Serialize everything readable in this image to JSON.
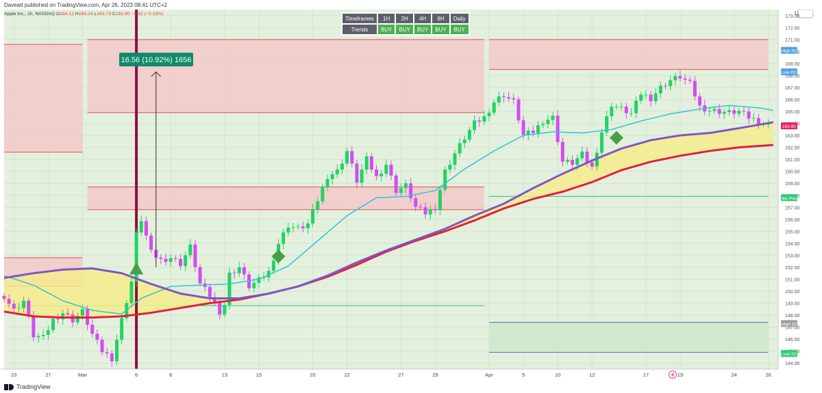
{
  "header": {
    "published": "Daveatt published on TradingView.com, Apr 26, 2023 08:41 UTC+2",
    "symbol": "Apple Inc., 1h, NASDAQ",
    "o_label": "O",
    "o": "164.12",
    "h_label": "H",
    "h": "164.24",
    "l_label": "L",
    "l": "163.73",
    "c_label": "C",
    "c": "163.80",
    "change": "−0.32 (−0.19%)"
  },
  "footer": {
    "brand": "TradingView"
  },
  "trend_table": {
    "row1": [
      "Timeframes",
      "1H",
      "2H",
      "4H",
      "8H",
      "Daily"
    ],
    "row2": [
      "Trends",
      "BUY",
      "BUY",
      "BUY",
      "BUY",
      "BUY"
    ]
  },
  "colors": {
    "background": "#e3f0dd",
    "bull": "#22d266",
    "bear": "#d34cf0",
    "fast_ma": "#2ec4d6",
    "slow_ma_purple": "#7e57c2",
    "slow_ma_red": "#e0203a",
    "cloud": "#f6ec8a",
    "resistance_zone": "#f2c9c9",
    "support_zone": "#cde8cd",
    "entry_line": "#8a0f3d",
    "label_green": "#0f8a6a"
  },
  "chart_data": {
    "type": "candlestick",
    "ticker": "AAPL",
    "timeframe": "1h",
    "currency": "USD",
    "ylim": [
      143.5,
      173.5
    ],
    "yticks": [
      144,
      145,
      146,
      147,
      148,
      149,
      150,
      151,
      152,
      153,
      154,
      155,
      156,
      157,
      158,
      159,
      160,
      161,
      162,
      163,
      164,
      165,
      166,
      167,
      168,
      169,
      170,
      171,
      172,
      173
    ],
    "x_tick_labels": [
      {
        "label": "23",
        "t": 2
      },
      {
        "label": "27",
        "t": 9
      },
      {
        "label": "Mar",
        "t": 16
      },
      {
        "label": "6",
        "t": 27
      },
      {
        "label": "8",
        "t": 34
      },
      {
        "label": "13",
        "t": 45
      },
      {
        "label": "15",
        "t": 52
      },
      {
        "label": "20",
        "t": 63
      },
      {
        "label": "22",
        "t": 70
      },
      {
        "label": "27",
        "t": 81
      },
      {
        "label": "29",
        "t": 88
      },
      {
        "label": "Apr",
        "t": 99
      },
      {
        "label": "5",
        "t": 106
      },
      {
        "label": "10",
        "t": 113
      },
      {
        "label": "12",
        "t": 120
      },
      {
        "label": "17",
        "t": 131
      },
      {
        "label": "19",
        "t": 138
      },
      {
        "label": "24",
        "t": 149
      },
      {
        "label": "26",
        "t": 156
      }
    ],
    "x_range": [
      0,
      158
    ],
    "price_anchors": [
      [
        0,
        149.6
      ],
      [
        2,
        148.4
      ],
      [
        4,
        149.2
      ],
      [
        6,
        146.3
      ],
      [
        8,
        146.1
      ],
      [
        10,
        147.6
      ],
      [
        12,
        148.2
      ],
      [
        14,
        147.6
      ],
      [
        16,
        148.3
      ],
      [
        18,
        146.4
      ],
      [
        20,
        145.0
      ],
      [
        22,
        144.4
      ],
      [
        24,
        147.6
      ],
      [
        26,
        150.8
      ],
      [
        27,
        154.7
      ],
      [
        28,
        156.0
      ],
      [
        30,
        153.2
      ],
      [
        32,
        152.6
      ],
      [
        34,
        152.8
      ],
      [
        36,
        152.3
      ],
      [
        38,
        153.7
      ],
      [
        40,
        150.6
      ],
      [
        42,
        149.6
      ],
      [
        44,
        148.3
      ],
      [
        45,
        148.9
      ],
      [
        46,
        151.4
      ],
      [
        48,
        152.0
      ],
      [
        50,
        150.4
      ],
      [
        52,
        150.9
      ],
      [
        54,
        151.6
      ],
      [
        56,
        154.0
      ],
      [
        58,
        155.5
      ],
      [
        60,
        155.2
      ],
      [
        62,
        155.6
      ],
      [
        64,
        157.6
      ],
      [
        66,
        159.6
      ],
      [
        68,
        160.0
      ],
      [
        70,
        161.7
      ],
      [
        72,
        159.2
      ],
      [
        74,
        161.0
      ],
      [
        76,
        159.5
      ],
      [
        78,
        160.6
      ],
      [
        80,
        158.4
      ],
      [
        82,
        158.8
      ],
      [
        84,
        157.0
      ],
      [
        86,
        156.5
      ],
      [
        88,
        157.0
      ],
      [
        90,
        160.0
      ],
      [
        92,
        161.5
      ],
      [
        94,
        162.8
      ],
      [
        96,
        164.0
      ],
      [
        98,
        164.5
      ],
      [
        100,
        165.8
      ],
      [
        102,
        166.4
      ],
      [
        104,
        165.8
      ],
      [
        106,
        163.0
      ],
      [
        108,
        163.3
      ],
      [
        110,
        164.2
      ],
      [
        112,
        164.5
      ],
      [
        114,
        160.8
      ],
      [
        116,
        160.7
      ],
      [
        118,
        161.4
      ],
      [
        120,
        160.3
      ],
      [
        122,
        163.3
      ],
      [
        124,
        165.6
      ],
      [
        126,
        165.2
      ],
      [
        128,
        164.8
      ],
      [
        130,
        166.5
      ],
      [
        132,
        166.1
      ],
      [
        134,
        167.0
      ],
      [
        136,
        167.6
      ],
      [
        138,
        167.9
      ],
      [
        140,
        167.3
      ],
      [
        142,
        165.4
      ],
      [
        144,
        165.1
      ],
      [
        146,
        165.0
      ],
      [
        148,
        164.9
      ],
      [
        150,
        165.0
      ],
      [
        152,
        164.5
      ],
      [
        154,
        164.2
      ],
      [
        156,
        163.8
      ]
    ],
    "sma_fast_anchors": [
      [
        0,
        151.3
      ],
      [
        6,
        150.5
      ],
      [
        12,
        149.2
      ],
      [
        18,
        148.4
      ],
      [
        24,
        148.1
      ],
      [
        28,
        149.4
      ],
      [
        34,
        150.4
      ],
      [
        40,
        150.5
      ],
      [
        46,
        150.6
      ],
      [
        52,
        151.0
      ],
      [
        58,
        152.1
      ],
      [
        64,
        154.2
      ],
      [
        70,
        156.3
      ],
      [
        76,
        157.8
      ],
      [
        82,
        157.9
      ],
      [
        88,
        158.4
      ],
      [
        94,
        160.2
      ],
      [
        100,
        161.7
      ],
      [
        106,
        163.0
      ],
      [
        112,
        163.3
      ],
      [
        118,
        163.2
      ],
      [
        124,
        163.5
      ],
      [
        130,
        164.2
      ],
      [
        136,
        164.8
      ],
      [
        142,
        165.2
      ],
      [
        148,
        165.5
      ],
      [
        154,
        165.3
      ],
      [
        157,
        165.1
      ]
    ],
    "ma_purple_anchors": [
      [
        0,
        151.1
      ],
      [
        6,
        151.5
      ],
      [
        12,
        151.8
      ],
      [
        18,
        151.9
      ],
      [
        24,
        151.5
      ],
      [
        30,
        150.6
      ],
      [
        36,
        149.8
      ],
      [
        42,
        149.4
      ],
      [
        48,
        149.4
      ],
      [
        54,
        149.8
      ],
      [
        60,
        150.4
      ],
      [
        66,
        151.3
      ],
      [
        72,
        152.4
      ],
      [
        78,
        153.4
      ],
      [
        84,
        154.3
      ],
      [
        90,
        155.2
      ],
      [
        96,
        156.3
      ],
      [
        102,
        157.3
      ],
      [
        108,
        158.6
      ],
      [
        114,
        159.8
      ],
      [
        120,
        160.9
      ],
      [
        126,
        161.9
      ],
      [
        132,
        162.6
      ],
      [
        138,
        163.0
      ],
      [
        144,
        163.2
      ],
      [
        150,
        163.6
      ],
      [
        157,
        164.1
      ]
    ],
    "ma_red_anchors": [
      [
        0,
        148.3
      ],
      [
        6,
        147.9
      ],
      [
        12,
        147.8
      ],
      [
        18,
        147.8
      ],
      [
        24,
        147.9
      ],
      [
        30,
        148.2
      ],
      [
        36,
        148.6
      ],
      [
        42,
        149.0
      ],
      [
        48,
        149.3
      ],
      [
        54,
        149.8
      ],
      [
        60,
        150.4
      ],
      [
        66,
        151.2
      ],
      [
        72,
        152.2
      ],
      [
        78,
        153.3
      ],
      [
        84,
        154.2
      ],
      [
        90,
        155.0
      ],
      [
        96,
        155.9
      ],
      [
        102,
        156.9
      ],
      [
        108,
        157.7
      ],
      [
        114,
        158.3
      ],
      [
        120,
        159.1
      ],
      [
        126,
        160.1
      ],
      [
        132,
        160.8
      ],
      [
        138,
        161.3
      ],
      [
        144,
        161.7
      ],
      [
        150,
        162.0
      ],
      [
        157,
        162.2
      ]
    ],
    "zones": [
      {
        "kind": "resistance",
        "t0": 0,
        "t1": 16,
        "top": 170.6,
        "bottom": 161.6
      },
      {
        "kind": "resistance",
        "t0": 17,
        "t1": 98,
        "top": 171.0,
        "bottom": 164.9
      },
      {
        "kind": "resistance",
        "t0": 17,
        "t1": 98,
        "top": 158.7,
        "bottom": 156.8
      },
      {
        "kind": "resistance",
        "t0": 0,
        "t1": 16,
        "top": 152.8,
        "bottom": 150.4
      },
      {
        "kind": "resistance",
        "t0": 99,
        "t1": 156,
        "top": 171.0,
        "bottom": 168.5
      },
      {
        "kind": "support",
        "t0": 99,
        "t1": 156,
        "top": 147.4,
        "bottom": 144.9
      }
    ],
    "horizontal_lines": [
      {
        "name": "pivot",
        "t0": 0,
        "t1": 98,
        "value": 148.8,
        "color": "#2ecc71"
      },
      {
        "name": "pivot",
        "t0": 99,
        "t1": 156,
        "value": 157.9,
        "color": "#2ecc71"
      }
    ],
    "price_axis_labels": [
      {
        "text": "High R2",
        "value": 170.1,
        "color": "#4fa3e0"
      },
      {
        "text": "Low R2",
        "value": 168.3,
        "color": "#4fa3e0"
      },
      {
        "text": "163.80",
        "value": 163.8,
        "color": "#e91e63"
      },
      {
        "text": "Fibo Pivot",
        "value": 157.8,
        "color": "#2ecc71"
      },
      {
        "text": "High S2",
        "value": 147.3,
        "color": "#9e9e9e"
      },
      {
        "text": "Low S2",
        "value": 144.8,
        "color": "#2ecc71"
      }
    ],
    "signals": [
      {
        "shape": "triangle-up",
        "t": 27,
        "value": 151.8
      },
      {
        "shape": "diamond",
        "t": 56,
        "value": 152.9
      },
      {
        "shape": "diamond",
        "t": 125,
        "value": 162.8
      }
    ],
    "entry_line_t": 27,
    "measure": {
      "label": "16.56 (10.92%) 1656",
      "t": 31,
      "from": 152.0,
      "to": 168.3
    }
  }
}
